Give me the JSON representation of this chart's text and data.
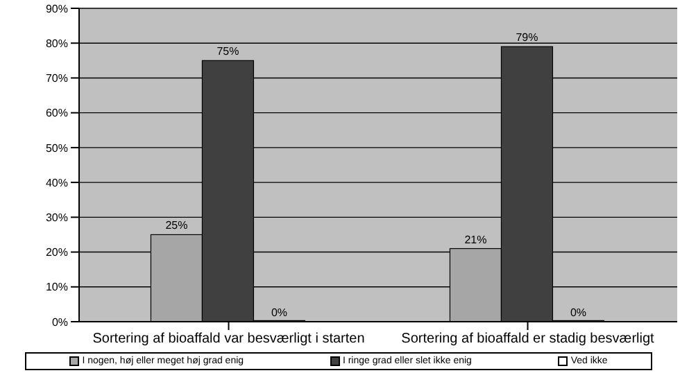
{
  "chart_data": {
    "type": "bar",
    "categories": [
      "Sortering af bioaffald var besværligt i starten",
      "Sortering af bioaffald er stadig besværligt"
    ],
    "series": [
      {
        "name": "I nogen, høj eller meget høj grad enig",
        "color": "#a6a6a6",
        "values": [
          25,
          21
        ],
        "value_labels": [
          "25%",
          "21%"
        ]
      },
      {
        "name": "I ringe grad eller slet ikke enig",
        "color": "#404040",
        "values": [
          75,
          79
        ],
        "value_labels": [
          "75%",
          "79%"
        ]
      },
      {
        "name": "Ved ikke",
        "color": "#ffffff",
        "values": [
          0,
          0
        ],
        "value_labels": [
          "0%",
          "0%"
        ]
      }
    ],
    "ylim": [
      0,
      90
    ],
    "yticks": [
      {
        "value": 0,
        "label": "0%"
      },
      {
        "value": 10,
        "label": "10%"
      },
      {
        "value": 20,
        "label": "20%"
      },
      {
        "value": 30,
        "label": "30%"
      },
      {
        "value": 40,
        "label": "40%"
      },
      {
        "value": 50,
        "label": "50%"
      },
      {
        "value": 60,
        "label": "60%"
      },
      {
        "value": 70,
        "label": "70%"
      },
      {
        "value": 80,
        "label": "80%"
      },
      {
        "value": 90,
        "label": "90%"
      }
    ],
    "grid": "y",
    "legend": "bottom"
  }
}
